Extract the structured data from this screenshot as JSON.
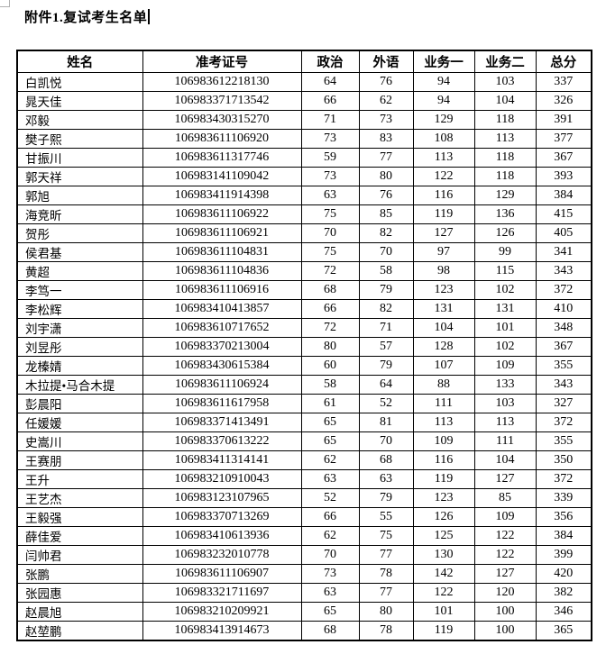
{
  "title": "附件1.复试考生名单",
  "table": {
    "headers": [
      "姓名",
      "准考证号",
      "政治",
      "外语",
      "业务一",
      "业务二",
      "总分"
    ],
    "rows": [
      [
        "白凯悦",
        "106983612218130",
        64,
        76,
        94,
        103,
        337
      ],
      [
        "晁天佳",
        "106983371713542",
        66,
        62,
        94,
        104,
        326
      ],
      [
        "邓毅",
        "106983430315270",
        71,
        73,
        129,
        118,
        391
      ],
      [
        "樊子熙",
        "106983611106920",
        73,
        83,
        108,
        113,
        377
      ],
      [
        "甘振川",
        "106983611317746",
        59,
        77,
        113,
        118,
        367
      ],
      [
        "郭天祥",
        "106983141109042",
        73,
        80,
        122,
        118,
        393
      ],
      [
        "郭旭",
        "106983411914398",
        63,
        76,
        116,
        129,
        384
      ],
      [
        "海竞昕",
        "106983611106922",
        75,
        85,
        119,
        136,
        415
      ],
      [
        "贺彤",
        "106983611106921",
        70,
        82,
        127,
        126,
        405
      ],
      [
        "侯君基",
        "106983611104831",
        75,
        70,
        97,
        99,
        341
      ],
      [
        "黄超",
        "106983611104836",
        72,
        58,
        98,
        115,
        343
      ],
      [
        "李笃一",
        "106983611106916",
        68,
        79,
        123,
        102,
        372
      ],
      [
        "李松辉",
        "106983410413857",
        66,
        82,
        131,
        131,
        410
      ],
      [
        "刘宇潇",
        "106983610717652",
        72,
        71,
        104,
        101,
        348
      ],
      [
        "刘昱彤",
        "106983370213004",
        80,
        57,
        128,
        102,
        367
      ],
      [
        "龙榛婧",
        "106983430615384",
        60,
        79,
        107,
        109,
        355
      ],
      [
        "木拉提•马合木提",
        "106983611106924",
        58,
        64,
        88,
        133,
        343
      ],
      [
        "彭晨阳",
        "106983611617958",
        61,
        52,
        111,
        103,
        327
      ],
      [
        "任媛媛",
        "106983371413491",
        65,
        81,
        113,
        113,
        372
      ],
      [
        "史嵩川",
        "106983370613222",
        65,
        70,
        109,
        111,
        355
      ],
      [
        "王赛朋",
        "106983411314141",
        62,
        68,
        116,
        104,
        350
      ],
      [
        "王升",
        "106983210910043",
        63,
        63,
        119,
        127,
        372
      ],
      [
        "王艺杰",
        "106983123107965",
        52,
        79,
        123,
        85,
        339
      ],
      [
        "王毅强",
        "106983370713269",
        66,
        55,
        126,
        109,
        356
      ],
      [
        "薛佳爱",
        "106983410613936",
        62,
        75,
        125,
        122,
        384
      ],
      [
        "闫帅君",
        "106983232010778",
        70,
        77,
        130,
        122,
        399
      ],
      [
        "张鹏",
        "106983611106907",
        73,
        78,
        142,
        127,
        420
      ],
      [
        "张园惠",
        "106983321711697",
        63,
        77,
        122,
        120,
        382
      ],
      [
        "赵晨旭",
        "106983210209921",
        65,
        80,
        101,
        100,
        346
      ],
      [
        "赵堃鹏",
        "106983413914673",
        68,
        78,
        119,
        100,
        365
      ]
    ]
  }
}
